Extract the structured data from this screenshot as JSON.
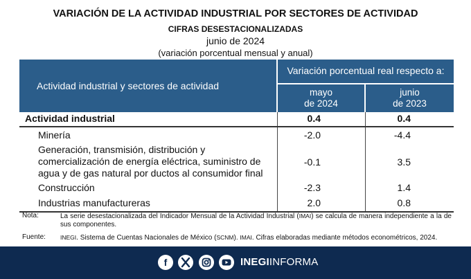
{
  "header": {
    "title": "VARIACIÓN DE LA ACTIVIDAD INDUSTRIAL POR SECTORES DE ACTIVIDAD",
    "subtitle": "CIFRAS DESESTACIONALIZADAS",
    "period": "junio de 2024",
    "unit": "(variación porcentual mensual y anual)"
  },
  "table": {
    "row_header": "Actividad industrial y sectores de actividad",
    "group_header": "Variación porcentual real respecto a:",
    "columns": [
      {
        "line1": "mayo",
        "line2": "de 2024"
      },
      {
        "line1": "junio",
        "line2": "de 2023"
      }
    ],
    "rows": [
      {
        "label": "Actividad industrial",
        "v1": "0.4",
        "v2": "0.4"
      },
      {
        "label": "Minería",
        "v1": "-2.0",
        "v2": "-4.4"
      },
      {
        "label_lines": [
          "Generación, transmisión, distribución y",
          "comercialización de energía eléctrica, suministro de",
          "agua y de gas natural por ductos al consumidor final"
        ],
        "v1": "-0.1",
        "v2": "3.5"
      },
      {
        "label": "Construcción",
        "v1": "-2.3",
        "v2": "1.4"
      },
      {
        "label": "Industrias manufactureras",
        "v1": "2.0",
        "v2": "0.8"
      }
    ]
  },
  "notes": {
    "note_key": "Nota:",
    "note_a": "La serie desestacionalizada del Indicador Mensual de la Actividad Industrial (",
    "note_abbr": "IMAI",
    "note_b": ") se calcula de manera independiente a la de sus componentes.",
    "source_key": "Fuente:",
    "source_abbr1": "INEGI",
    "source_a": ". Sistema de Cuentas Nacionales de México (",
    "source_abbr2": "SCNM",
    "source_b": "). ",
    "source_abbr3": "IMAI",
    "source_c": ". Cifras elaboradas mediante métodos econométricos, 2024."
  },
  "footer": {
    "icons": [
      "facebook-icon",
      "x-icon",
      "instagram-icon",
      "youtube-icon"
    ],
    "brand_bold": "INEGI",
    "brand_rest": "INFORMA",
    "colors": {
      "header_blue": "#2b5d8a",
      "footer_navy": "#0e2a50"
    }
  }
}
